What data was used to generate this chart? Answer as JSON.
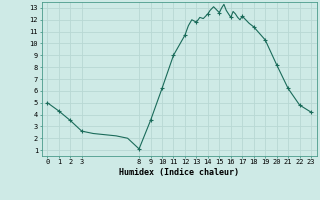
{
  "title": "",
  "xlabel": "Humidex (Indice chaleur)",
  "background_color": "#ceeae6",
  "grid_color": "#b8d8d4",
  "line_color": "#1a6b5a",
  "marker_color": "#1a6b5a",
  "xlim": [
    -0.5,
    23.5
  ],
  "ylim": [
    0.5,
    13.5
  ],
  "x_ticks": [
    0,
    1,
    2,
    3,
    8,
    9,
    10,
    11,
    12,
    13,
    14,
    15,
    16,
    17,
    18,
    19,
    20,
    21,
    22,
    23
  ],
  "y_ticks": [
    1,
    2,
    3,
    4,
    5,
    6,
    7,
    8,
    9,
    10,
    11,
    12,
    13
  ],
  "hours": [
    0,
    1,
    2,
    3,
    4,
    5,
    6,
    7,
    8,
    9,
    10,
    11,
    12,
    12.3,
    12.6,
    13,
    13.3,
    13.6,
    14,
    14.2,
    14.5,
    14.7,
    15,
    15.2,
    15.4,
    15.6,
    15.8,
    16,
    16.2,
    16.4,
    16.6,
    16.8,
    17,
    17.3,
    17.6,
    18,
    19,
    20,
    21,
    22,
    23
  ],
  "values": [
    5.0,
    4.3,
    3.5,
    2.6,
    2.4,
    2.3,
    2.2,
    2.0,
    1.1,
    3.5,
    6.2,
    9.0,
    10.7,
    11.5,
    12.0,
    11.8,
    12.2,
    12.1,
    12.5,
    12.8,
    13.1,
    12.9,
    12.6,
    13.0,
    13.3,
    12.8,
    12.5,
    12.2,
    12.7,
    12.5,
    12.2,
    12.0,
    12.3,
    12.0,
    11.7,
    11.4,
    10.3,
    8.2,
    6.2,
    4.8,
    4.2
  ],
  "marker_hours": [
    0,
    1,
    2,
    3,
    8,
    9,
    10,
    11,
    12,
    13,
    14,
    15,
    16,
    17,
    18,
    19,
    20,
    21,
    22,
    23
  ],
  "marker_values": [
    5.0,
    4.3,
    3.5,
    2.6,
    1.1,
    3.5,
    6.2,
    9.0,
    10.7,
    11.8,
    12.5,
    12.6,
    12.2,
    12.3,
    11.4,
    10.3,
    8.2,
    6.2,
    4.8,
    4.2
  ]
}
